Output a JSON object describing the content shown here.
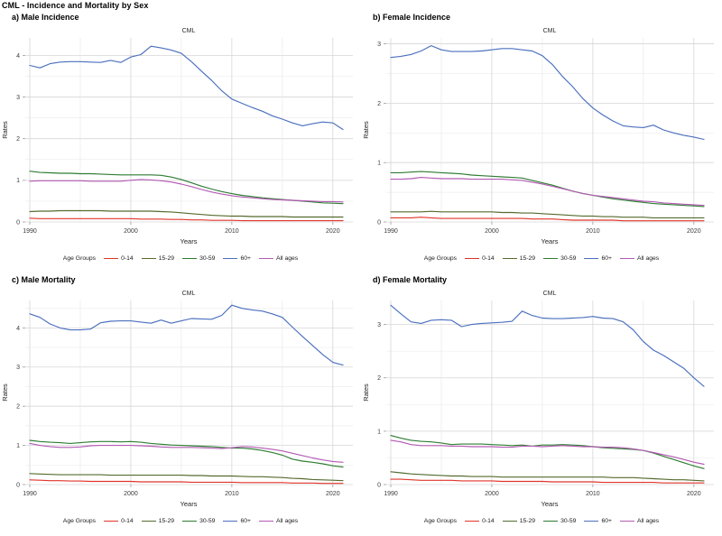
{
  "figure_title": "CML - Incidence and Mortality by Sex",
  "legend": {
    "title": "Age Groups",
    "entries": [
      {
        "label": "0-14",
        "color": "#e0352b"
      },
      {
        "label": "15-29",
        "color": "#556b2f"
      },
      {
        "label": "30-59",
        "color": "#2e7d32"
      },
      {
        "label": "60+",
        "color": "#4a6fbe"
      },
      {
        "label": "All ages",
        "color": "#b35ab3"
      }
    ]
  },
  "chart_data": [
    {
      "type": "line",
      "panel_label": "a) Male Incidence",
      "title": "CML",
      "xlabel": "Years",
      "ylabel": "Rates",
      "x_start": 1990,
      "x_end": 2021,
      "xticks": [
        1990,
        2000,
        2010,
        2020
      ],
      "yticks": [
        0,
        1,
        2,
        3,
        4
      ],
      "ylim": [
        0,
        4.42
      ],
      "grid": true,
      "legend_position": "bottom",
      "series": [
        {
          "name": "0-14",
          "values": [
            0.09,
            0.08,
            0.08,
            0.08,
            0.08,
            0.08,
            0.08,
            0.08,
            0.08,
            0.08,
            0.08,
            0.07,
            0.07,
            0.07,
            0.06,
            0.06,
            0.05,
            0.05,
            0.04,
            0.04,
            0.04,
            0.03,
            0.03,
            0.03,
            0.03,
            0.03,
            0.03,
            0.03,
            0.03,
            0.03,
            0.03,
            0.03
          ]
        },
        {
          "name": "15-29",
          "values": [
            0.25,
            0.26,
            0.26,
            0.27,
            0.27,
            0.27,
            0.27,
            0.27,
            0.26,
            0.26,
            0.26,
            0.26,
            0.26,
            0.25,
            0.24,
            0.22,
            0.2,
            0.18,
            0.16,
            0.15,
            0.14,
            0.14,
            0.13,
            0.13,
            0.13,
            0.13,
            0.12,
            0.12,
            0.12,
            0.12,
            0.12,
            0.12
          ]
        },
        {
          "name": "30-59",
          "values": [
            1.22,
            1.19,
            1.18,
            1.17,
            1.17,
            1.16,
            1.16,
            1.15,
            1.14,
            1.13,
            1.13,
            1.13,
            1.13,
            1.12,
            1.08,
            1.02,
            0.94,
            0.86,
            0.79,
            0.73,
            0.68,
            0.64,
            0.61,
            0.58,
            0.56,
            0.54,
            0.52,
            0.5,
            0.48,
            0.46,
            0.45,
            0.44
          ]
        },
        {
          "name": "60+",
          "values": [
            3.76,
            3.7,
            3.8,
            3.84,
            3.85,
            3.85,
            3.84,
            3.83,
            3.88,
            3.83,
            3.96,
            4.02,
            4.22,
            4.18,
            4.13,
            4.05,
            3.85,
            3.62,
            3.4,
            3.15,
            2.95,
            2.85,
            2.75,
            2.66,
            2.55,
            2.47,
            2.38,
            2.31,
            2.36,
            2.4,
            2.38,
            2.22
          ]
        },
        {
          "name": "All ages",
          "values": [
            0.98,
            0.99,
            0.99,
            0.99,
            0.99,
            0.99,
            0.98,
            0.98,
            0.98,
            0.98,
            1.0,
            1.02,
            1.01,
            0.99,
            0.96,
            0.91,
            0.85,
            0.78,
            0.72,
            0.67,
            0.63,
            0.6,
            0.58,
            0.56,
            0.54,
            0.53,
            0.52,
            0.51,
            0.5,
            0.49,
            0.49,
            0.48
          ]
        }
      ]
    },
    {
      "type": "line",
      "panel_label": "b) Female Incidence",
      "title": "CML",
      "xlabel": "Years",
      "ylabel": "Rates",
      "x_start": 1990,
      "x_end": 2021,
      "xticks": [
        1990,
        2000,
        2010,
        2020
      ],
      "yticks": [
        0,
        1,
        2,
        3
      ],
      "ylim": [
        0,
        3.1
      ],
      "grid": true,
      "legend_position": "bottom",
      "series": [
        {
          "name": "0-14",
          "values": [
            0.07,
            0.07,
            0.07,
            0.08,
            0.07,
            0.06,
            0.06,
            0.06,
            0.06,
            0.06,
            0.06,
            0.06,
            0.06,
            0.06,
            0.05,
            0.05,
            0.05,
            0.04,
            0.03,
            0.03,
            0.03,
            0.03,
            0.03,
            0.02,
            0.02,
            0.02,
            0.02,
            0.02,
            0.02,
            0.02,
            0.02,
            0.02
          ]
        },
        {
          "name": "15-29",
          "values": [
            0.17,
            0.17,
            0.17,
            0.17,
            0.18,
            0.17,
            0.17,
            0.17,
            0.17,
            0.17,
            0.17,
            0.16,
            0.16,
            0.15,
            0.15,
            0.14,
            0.13,
            0.12,
            0.11,
            0.1,
            0.1,
            0.09,
            0.09,
            0.08,
            0.08,
            0.08,
            0.07,
            0.07,
            0.07,
            0.07,
            0.07,
            0.07
          ]
        },
        {
          "name": "30-59",
          "values": [
            0.83,
            0.83,
            0.84,
            0.85,
            0.84,
            0.83,
            0.82,
            0.81,
            0.79,
            0.78,
            0.77,
            0.76,
            0.75,
            0.74,
            0.7,
            0.66,
            0.62,
            0.57,
            0.52,
            0.48,
            0.45,
            0.42,
            0.39,
            0.37,
            0.35,
            0.33,
            0.31,
            0.3,
            0.29,
            0.28,
            0.27,
            0.26
          ]
        },
        {
          "name": "60+",
          "values": [
            2.77,
            2.79,
            2.82,
            2.88,
            2.97,
            2.9,
            2.87,
            2.87,
            2.87,
            2.88,
            2.9,
            2.92,
            2.92,
            2.9,
            2.88,
            2.8,
            2.65,
            2.45,
            2.28,
            2.08,
            1.92,
            1.8,
            1.7,
            1.62,
            1.6,
            1.59,
            1.63,
            1.55,
            1.5,
            1.46,
            1.43,
            1.39
          ]
        },
        {
          "name": "All ages",
          "values": [
            0.72,
            0.72,
            0.73,
            0.75,
            0.74,
            0.73,
            0.73,
            0.73,
            0.72,
            0.72,
            0.72,
            0.72,
            0.71,
            0.7,
            0.67,
            0.64,
            0.6,
            0.56,
            0.52,
            0.48,
            0.45,
            0.43,
            0.41,
            0.39,
            0.37,
            0.35,
            0.34,
            0.32,
            0.31,
            0.3,
            0.29,
            0.28
          ]
        }
      ]
    },
    {
      "type": "line",
      "panel_label": "c) Male Mortality",
      "title": "CML",
      "xlabel": "Years",
      "ylabel": "Rates",
      "x_start": 1990,
      "x_end": 2021,
      "xticks": [
        1990,
        2000,
        2010,
        2020
      ],
      "yticks": [
        0,
        1,
        2,
        3,
        4
      ],
      "ylim": [
        0,
        4.7
      ],
      "grid": true,
      "legend_position": "bottom",
      "series": [
        {
          "name": "0-14",
          "values": [
            0.12,
            0.11,
            0.1,
            0.1,
            0.09,
            0.09,
            0.08,
            0.08,
            0.08,
            0.08,
            0.08,
            0.07,
            0.07,
            0.07,
            0.07,
            0.07,
            0.06,
            0.06,
            0.06,
            0.06,
            0.06,
            0.05,
            0.05,
            0.05,
            0.05,
            0.05,
            0.04,
            0.04,
            0.04,
            0.03,
            0.03,
            0.03
          ]
        },
        {
          "name": "15-29",
          "values": [
            0.28,
            0.27,
            0.26,
            0.25,
            0.25,
            0.25,
            0.25,
            0.25,
            0.24,
            0.24,
            0.24,
            0.24,
            0.24,
            0.24,
            0.24,
            0.24,
            0.23,
            0.23,
            0.22,
            0.22,
            0.22,
            0.21,
            0.2,
            0.2,
            0.19,
            0.18,
            0.16,
            0.15,
            0.13,
            0.12,
            0.11,
            0.1
          ]
        },
        {
          "name": "30-59",
          "values": [
            1.13,
            1.1,
            1.08,
            1.07,
            1.05,
            1.07,
            1.09,
            1.1,
            1.1,
            1.09,
            1.1,
            1.08,
            1.05,
            1.03,
            1.01,
            1.0,
            0.99,
            0.98,
            0.97,
            0.95,
            0.93,
            0.93,
            0.91,
            0.87,
            0.82,
            0.75,
            0.65,
            0.6,
            0.57,
            0.53,
            0.48,
            0.45
          ]
        },
        {
          "name": "60+",
          "values": [
            4.36,
            4.27,
            4.1,
            4.0,
            3.95,
            3.95,
            3.97,
            4.13,
            4.17,
            4.18,
            4.18,
            4.15,
            4.12,
            4.2,
            4.12,
            4.18,
            4.24,
            4.23,
            4.22,
            4.32,
            4.58,
            4.5,
            4.46,
            4.43,
            4.36,
            4.27,
            4.02,
            3.78,
            3.55,
            3.32,
            3.12,
            3.05
          ]
        },
        {
          "name": "All ages",
          "values": [
            1.05,
            1.0,
            0.97,
            0.95,
            0.95,
            0.96,
            0.99,
            1.0,
            1.0,
            1.0,
            1.0,
            0.99,
            0.98,
            0.96,
            0.95,
            0.95,
            0.95,
            0.94,
            0.93,
            0.92,
            0.94,
            0.97,
            0.96,
            0.93,
            0.9,
            0.86,
            0.8,
            0.74,
            0.68,
            0.63,
            0.59,
            0.57
          ]
        }
      ]
    },
    {
      "type": "line",
      "panel_label": "d) Female Mortality",
      "title": "CML",
      "xlabel": "Years",
      "ylabel": "Rates",
      "x_start": 1990,
      "x_end": 2021,
      "xticks": [
        1990,
        2000,
        2010,
        2020
      ],
      "yticks": [
        0,
        1,
        2,
        3
      ],
      "ylim": [
        0,
        3.45
      ],
      "grid": true,
      "legend_position": "bottom",
      "series": [
        {
          "name": "0-14",
          "values": [
            0.1,
            0.1,
            0.09,
            0.08,
            0.08,
            0.08,
            0.08,
            0.07,
            0.07,
            0.07,
            0.07,
            0.06,
            0.06,
            0.06,
            0.06,
            0.06,
            0.05,
            0.05,
            0.05,
            0.05,
            0.05,
            0.04,
            0.04,
            0.04,
            0.04,
            0.04,
            0.04,
            0.03,
            0.03,
            0.03,
            0.03,
            0.03
          ]
        },
        {
          "name": "15-29",
          "values": [
            0.24,
            0.22,
            0.2,
            0.19,
            0.18,
            0.17,
            0.16,
            0.16,
            0.15,
            0.15,
            0.15,
            0.14,
            0.14,
            0.14,
            0.14,
            0.14,
            0.14,
            0.14,
            0.14,
            0.14,
            0.14,
            0.14,
            0.13,
            0.13,
            0.13,
            0.12,
            0.11,
            0.1,
            0.09,
            0.09,
            0.08,
            0.07
          ]
        },
        {
          "name": "30-59",
          "values": [
            0.92,
            0.87,
            0.83,
            0.81,
            0.8,
            0.78,
            0.75,
            0.76,
            0.76,
            0.76,
            0.75,
            0.74,
            0.73,
            0.74,
            0.72,
            0.74,
            0.74,
            0.75,
            0.74,
            0.73,
            0.71,
            0.69,
            0.68,
            0.67,
            0.66,
            0.64,
            0.59,
            0.53,
            0.47,
            0.41,
            0.35,
            0.3
          ]
        },
        {
          "name": "60+",
          "values": [
            3.36,
            3.2,
            3.05,
            3.02,
            3.08,
            3.09,
            3.08,
            2.96,
            3.0,
            3.02,
            3.03,
            3.04,
            3.06,
            3.25,
            3.17,
            3.12,
            3.11,
            3.11,
            3.12,
            3.13,
            3.15,
            3.12,
            3.11,
            3.05,
            2.9,
            2.68,
            2.52,
            2.42,
            2.3,
            2.18,
            2.0,
            1.84
          ]
        },
        {
          "name": "All ages",
          "values": [
            0.83,
            0.8,
            0.75,
            0.73,
            0.73,
            0.73,
            0.72,
            0.72,
            0.71,
            0.71,
            0.71,
            0.7,
            0.7,
            0.72,
            0.72,
            0.71,
            0.72,
            0.73,
            0.72,
            0.71,
            0.71,
            0.7,
            0.7,
            0.69,
            0.67,
            0.64,
            0.6,
            0.56,
            0.52,
            0.47,
            0.42,
            0.38
          ]
        }
      ]
    }
  ]
}
